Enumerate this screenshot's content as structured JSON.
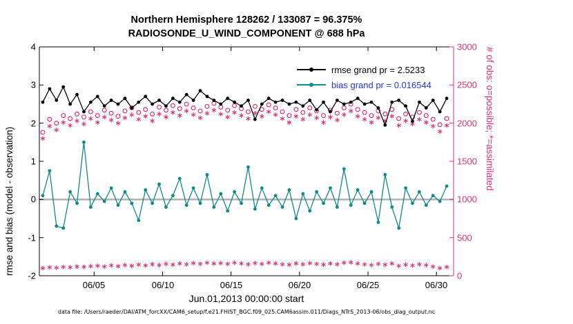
{
  "chart_data": {
    "type": "line",
    "title_line1": "Northern Hemisphere 128262 / 133087 = 96.375%",
    "title_line2": "RADIOSONDE_U_WIND_COMPONENT @ 688 hPa",
    "xlabel": "Jun.01,2013 00:00:00 start",
    "ylabel_left": "rmse and bias (model - observation)",
    "ylabel_right": "# of obs: o=possible; *=assimilated",
    "footer": "data file: /Users/raeder/DAI/ATM_forcXX/CAM6_setup/f.e21.FHIST_BGC.f09_025.CAM6assim.011/Diags_NTrS_2013-06/obs_diag_output.nc",
    "legend": [
      "rmse grand pr = 2.5233",
      "bias grand pr = 0.016544"
    ],
    "xlim": [
      0,
      30.25
    ],
    "ylim_left": [
      -2,
      4
    ],
    "ylim_right": [
      0,
      3000
    ],
    "xtick_days": [
      4,
      9,
      14,
      19,
      24,
      29
    ],
    "xtick_labels": [
      "06/05",
      "06/10",
      "06/15",
      "06/20",
      "06/25",
      "06/30"
    ],
    "yticks_left_labels": [
      "4",
      "3",
      "2",
      "1",
      "0",
      "-1",
      "-2"
    ],
    "yticks_right_labels": [
      "3000",
      "2500",
      "2000",
      "1500",
      "1000",
      "500",
      "0"
    ],
    "time": {
      "start_days": 0.25,
      "step_days": 0.5,
      "count": 60
    },
    "grid": false,
    "legend_position": "top-right-inside",
    "colors": {
      "rmse": "#000000",
      "bias": "#0f8a8a",
      "obs": "#e0336e",
      "zero_line": "#b0b0b0",
      "legend_bias_text": "#2438e8",
      "axis": "#000000"
    },
    "series": [
      {
        "name": "possible_obs (o)",
        "axis": "right",
        "marker": "open-circle",
        "color": "#e0336e",
        "values": [
          1880,
          2050,
          2000,
          2100,
          2060,
          2120,
          2080,
          2150,
          2100,
          2170,
          2130,
          2090,
          2160,
          2200,
          2140,
          2180,
          2120,
          2210,
          2170,
          2230,
          2190,
          2250,
          2200,
          2160,
          2220,
          2260,
          2210,
          2170,
          2230,
          2190,
          2150,
          2220,
          2180,
          2240,
          2200,
          2150,
          2100,
          2180,
          2140,
          2200,
          2160,
          2100,
          2170,
          2130,
          2200,
          2250,
          2180,
          2140,
          2100,
          2160,
          2120,
          2180,
          2060,
          2120,
          2080,
          2140,
          2100,
          2050,
          1980,
          2060
        ]
      },
      {
        "name": "assimilated_obs (*)",
        "axis": "right",
        "marker": "asterisk",
        "color": "#e0336e",
        "values": [
          1800,
          1960,
          1910,
          2010,
          1970,
          2030,
          1990,
          2060,
          2010,
          2080,
          2040,
          2000,
          2070,
          2110,
          2050,
          2090,
          2030,
          2120,
          2080,
          2140,
          2100,
          2160,
          2110,
          2070,
          2130,
          2170,
          2120,
          2080,
          2140,
          2100,
          2060,
          2130,
          2090,
          2150,
          2110,
          2060,
          2010,
          2090,
          2050,
          2110,
          2070,
          2010,
          2080,
          2040,
          2110,
          2160,
          2090,
          2050,
          2010,
          2070,
          2030,
          2090,
          1970,
          2030,
          1990,
          2050,
          2010,
          1960,
          1890,
          1970
        ]
      },
      {
        "name": "lower_band_obs (*)",
        "axis": "right",
        "marker": "asterisk",
        "color": "#e0336e",
        "values": [
          100,
          110,
          105,
          115,
          110,
          120,
          115,
          125,
          130,
          120,
          135,
          125,
          140,
          130,
          145,
          135,
          150,
          140,
          155,
          145,
          160,
          150,
          165,
          155,
          170,
          160,
          165,
          155,
          170,
          160,
          150,
          165,
          155,
          170,
          160,
          150,
          145,
          160,
          150,
          165,
          155,
          145,
          160,
          150,
          170,
          175,
          160,
          150,
          140,
          155,
          145,
          160,
          130,
          145,
          135,
          150,
          140,
          120,
          100,
          115
        ]
      },
      {
        "name": "rmse",
        "axis": "left",
        "marker": "dot-line",
        "color": "#000000",
        "values": [
          2.55,
          2.9,
          2.6,
          2.95,
          2.5,
          2.75,
          2.3,
          2.55,
          2.7,
          2.45,
          2.6,
          2.5,
          2.65,
          2.4,
          2.55,
          2.7,
          2.5,
          2.6,
          2.45,
          2.65,
          2.55,
          2.75,
          2.6,
          2.85,
          2.7,
          2.6,
          2.5,
          2.65,
          2.55,
          2.45,
          2.6,
          2.1,
          2.5,
          2.65,
          2.55,
          2.6,
          2.5,
          2.55,
          2.45,
          2.6,
          2.35,
          2.55,
          2.3,
          2.6,
          2.5,
          2.55,
          2.65,
          2.5,
          2.55,
          2.4,
          1.95,
          2.55,
          2.6,
          2.45,
          2.05,
          2.55,
          2.4,
          2.6,
          2.3,
          2.65
        ]
      },
      {
        "name": "bias",
        "axis": "left",
        "marker": "dot-line",
        "color": "#0f8a8a",
        "values": [
          0.1,
          0.75,
          -0.7,
          -0.75,
          0.2,
          -0.1,
          1.5,
          -0.2,
          0.15,
          -0.05,
          0.3,
          -0.15,
          0.2,
          -0.1,
          -0.55,
          0.25,
          -0.1,
          0.4,
          -0.2,
          0.1,
          0.55,
          -0.15,
          0.3,
          -0.1,
          0.65,
          -0.2,
          0.15,
          -0.3,
          0.2,
          -0.1,
          0.85,
          -0.25,
          0.3,
          -0.15,
          0.1,
          -0.2,
          0.25,
          -0.5,
          0.15,
          -0.3,
          0.2,
          -0.1,
          0.3,
          -0.2,
          0.8,
          -0.15,
          0.25,
          -0.1,
          0.2,
          -0.6,
          0.65,
          -0.2,
          -0.75,
          0.3,
          -0.1,
          0.2,
          -0.15,
          0.1,
          -0.05,
          0.35
        ]
      }
    ]
  }
}
